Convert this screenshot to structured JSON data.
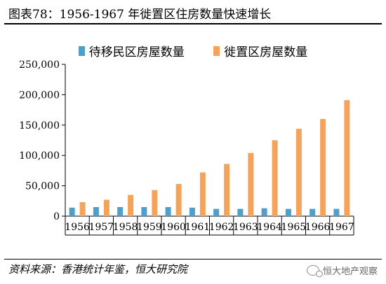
{
  "title": "图表78：1956-1967 年徙置区住房数量快速增长",
  "source": "资料来源：香港统计年鉴，恒大研究院",
  "watermark": "恒大地产观察",
  "colors": {
    "series_a": "#4f9fc9",
    "series_b": "#f5a25a",
    "axis": "#000000"
  },
  "chart_data": {
    "type": "bar",
    "title": "图表78：1956-1967 年徙置区住房数量快速增长",
    "xlabel": "",
    "ylabel": "",
    "ylim": [
      0,
      250000
    ],
    "yticks": [
      "0",
      "50,000",
      "100,000",
      "150,000",
      "200,000",
      "250,000"
    ],
    "ytick_values": [
      0,
      50000,
      100000,
      150000,
      200000,
      250000
    ],
    "grid": false,
    "legend": "top",
    "categories": [
      "1956",
      "1957",
      "1958",
      "1959",
      "1960",
      "1961",
      "1962",
      "1963",
      "1964",
      "1965",
      "1966",
      "1967"
    ],
    "series": [
      {
        "name": "待移民区房屋数量",
        "color": "#4f9fc9",
        "values": [
          14000,
          15000,
          15000,
          15000,
          15000,
          14000,
          12000,
          12000,
          13000,
          12000,
          12000,
          12000
        ]
      },
      {
        "name": "徙置区房屋数量",
        "color": "#f5a25a",
        "values": [
          23000,
          27000,
          35000,
          43000,
          53000,
          72000,
          86000,
          104000,
          125000,
          144000,
          160000,
          191000
        ]
      }
    ]
  }
}
